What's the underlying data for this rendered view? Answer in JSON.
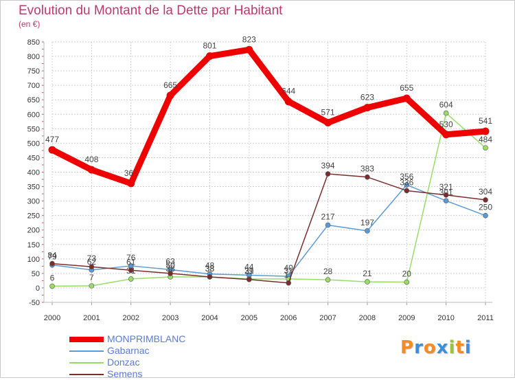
{
  "chart_data": {
    "type": "line",
    "title": "Evolution du Montant de la Dette par Habitant",
    "subtitle": "(en €)",
    "xlabel": "",
    "ylabel": "",
    "ylim": [
      -50,
      850
    ],
    "y_ticks": [
      -50,
      0,
      50,
      100,
      150,
      200,
      250,
      300,
      350,
      400,
      450,
      500,
      550,
      600,
      650,
      700,
      750,
      800,
      850
    ],
    "categories": [
      "2000",
      "2001",
      "2002",
      "2003",
      "2004",
      "2005",
      "2006",
      "2007",
      "2008",
      "2009",
      "2010",
      "2011"
    ],
    "grid": true,
    "legend_position": "bottom-left",
    "series": [
      {
        "name": "Gabarnac",
        "color": "#5b9bd5",
        "values": [
          79,
          62,
          76,
          63,
          48,
          44,
          40,
          217,
          197,
          356,
          301,
          250
        ]
      },
      {
        "name": "Donzac",
        "color": "#99dd66",
        "values": [
          6,
          7,
          31,
          38,
          38,
          31,
          31,
          28,
          21,
          20,
          604,
          484
        ]
      },
      {
        "name": "Semens",
        "color": "#7b2d2d",
        "values": [
          84,
          73,
          61,
          50,
          38,
          29,
          17,
          394,
          383,
          336,
          321,
          304
        ]
      },
      {
        "name": "MONPRIMBLANC",
        "color": "#ee0000",
        "values": [
          477,
          408,
          361,
          665,
          801,
          823,
          644,
          571,
          623,
          655,
          530,
          541
        ]
      }
    ]
  },
  "legend": {
    "items": [
      {
        "name": "MONPRIMBLANC",
        "color": "#ee0000"
      },
      {
        "name": "Gabarnac",
        "color": "#5b9bd5"
      },
      {
        "name": "Donzac",
        "color": "#99dd66"
      },
      {
        "name": "Semens",
        "color": "#7b2d2d"
      }
    ]
  },
  "logo": {
    "text": "Proxiti",
    "letters": [
      "P",
      "r",
      "o",
      "x",
      "i",
      "t",
      "i"
    ],
    "colors": [
      "#f28c28",
      "#3a8fd8",
      "#f28c28",
      "#3a8fd8",
      "#9ac23c",
      "#f28c28",
      "#3a8fd8"
    ]
  }
}
